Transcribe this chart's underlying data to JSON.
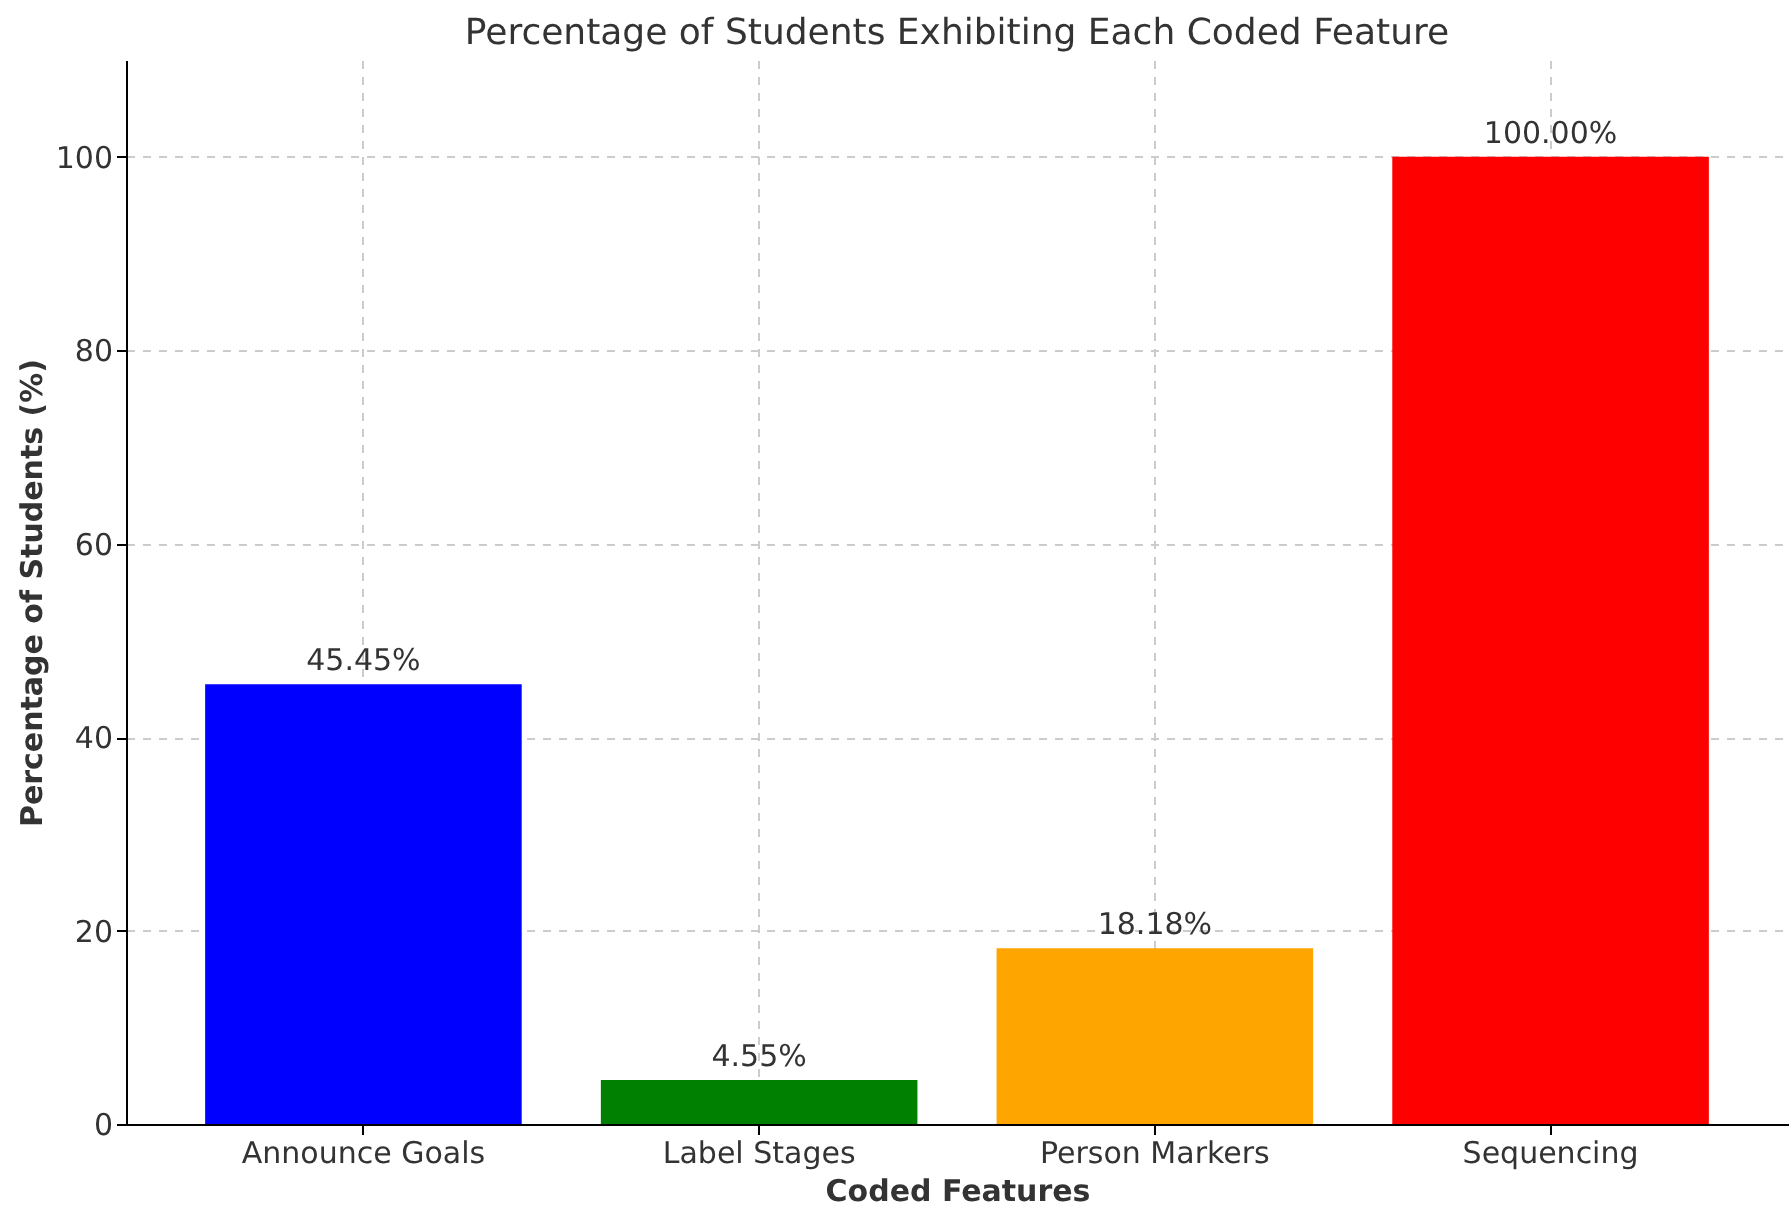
{
  "chart_data": {
    "type": "bar",
    "title": "Percentage of Students Exhibiting Each Coded Feature",
    "xlabel": "Coded Features",
    "ylabel": "Percentage of Students (%)",
    "categories": [
      "Announce Goals",
      "Label Stages",
      "Person Markers",
      "Sequencing"
    ],
    "values": [
      45.45,
      4.55,
      18.18,
      100
    ],
    "colors": [
      "#0000ff",
      "#008000",
      "#ffa500",
      "#ff0000"
    ],
    "value_labels": [
      "45.45%",
      "4.55%",
      "18.18%",
      "100.00%"
    ],
    "ylim": [
      0,
      110
    ],
    "yticks": [
      0,
      20,
      40,
      60,
      80,
      100
    ],
    "grid": true
  }
}
